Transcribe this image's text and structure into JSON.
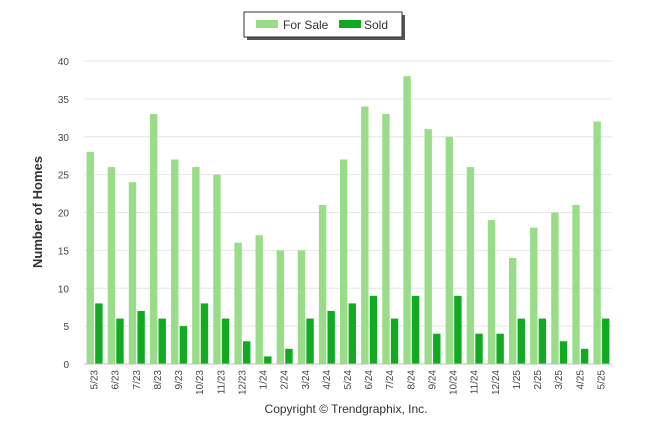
{
  "chart_data": {
    "type": "bar",
    "title": "",
    "xlabel": "",
    "ylabel": "Number of Homes",
    "ylim": [
      0,
      40
    ],
    "yticks": [
      0,
      5,
      10,
      15,
      20,
      25,
      30,
      35,
      40
    ],
    "grid": true,
    "legend_position": "top-center",
    "categories": [
      "5/23",
      "6/23",
      "7/23",
      "8/23",
      "9/23",
      "10/23",
      "11/23",
      "12/23",
      "1/24",
      "2/24",
      "3/24",
      "4/24",
      "5/24",
      "6/24",
      "7/24",
      "8/24",
      "9/24",
      "10/24",
      "11/24",
      "12/24",
      "1/25",
      "2/25",
      "3/25",
      "4/25",
      "5/25"
    ],
    "series": [
      {
        "name": "For Sale",
        "color": "#99dd88",
        "values": [
          28,
          26,
          24,
          33,
          27,
          26,
          25,
          16,
          17,
          15,
          15,
          21,
          27,
          34,
          33,
          38,
          31,
          30,
          26,
          19,
          14,
          18,
          20,
          21,
          32
        ]
      },
      {
        "name": "Sold",
        "color": "#11aa22",
        "values": [
          8,
          6,
          7,
          6,
          5,
          8,
          6,
          3,
          1,
          2,
          6,
          7,
          8,
          9,
          6,
          9,
          4,
          9,
          4,
          4,
          6,
          6,
          3,
          2,
          6
        ]
      }
    ]
  },
  "footer": {
    "copyright": "Copyright © Trendgraphix, Inc."
  }
}
